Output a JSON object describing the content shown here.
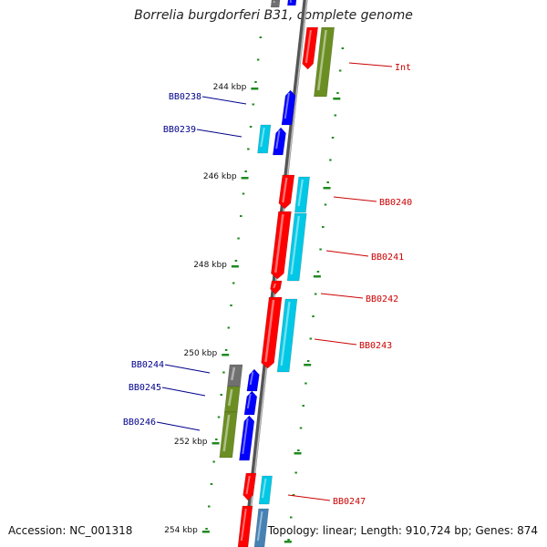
{
  "title": "Borrelia burgdorferi B31, complete genome",
  "accession_text": "Accession: NC_001318",
  "summary_text": "Topology: linear; Length: 910,724 bp; Genes: 874",
  "colors": {
    "backbone": "#7a7a7a",
    "tick": "#1f8a1f",
    "label_left": "#00008b",
    "label_right": "#cc0000",
    "gene_red": "#ff0000",
    "gene_blue": "#0000ff",
    "gene_cyan": "#00c8e6",
    "gene_olive": "#6b8e23",
    "gene_gray": "#707070"
  },
  "kbp_ticks": [
    "244 kbp",
    "246 kbp",
    "248 kbp",
    "250 kbp",
    "252 kbp",
    "254 kbp"
  ],
  "gene_labels_left": [
    "BB0238",
    "BB0239",
    "BB0244",
    "BB0245",
    "BB0246"
  ],
  "gene_labels_right": [
    "Int",
    "BB0240",
    "BB0241",
    "BB0242",
    "BB0243",
    "BB0247"
  ]
}
